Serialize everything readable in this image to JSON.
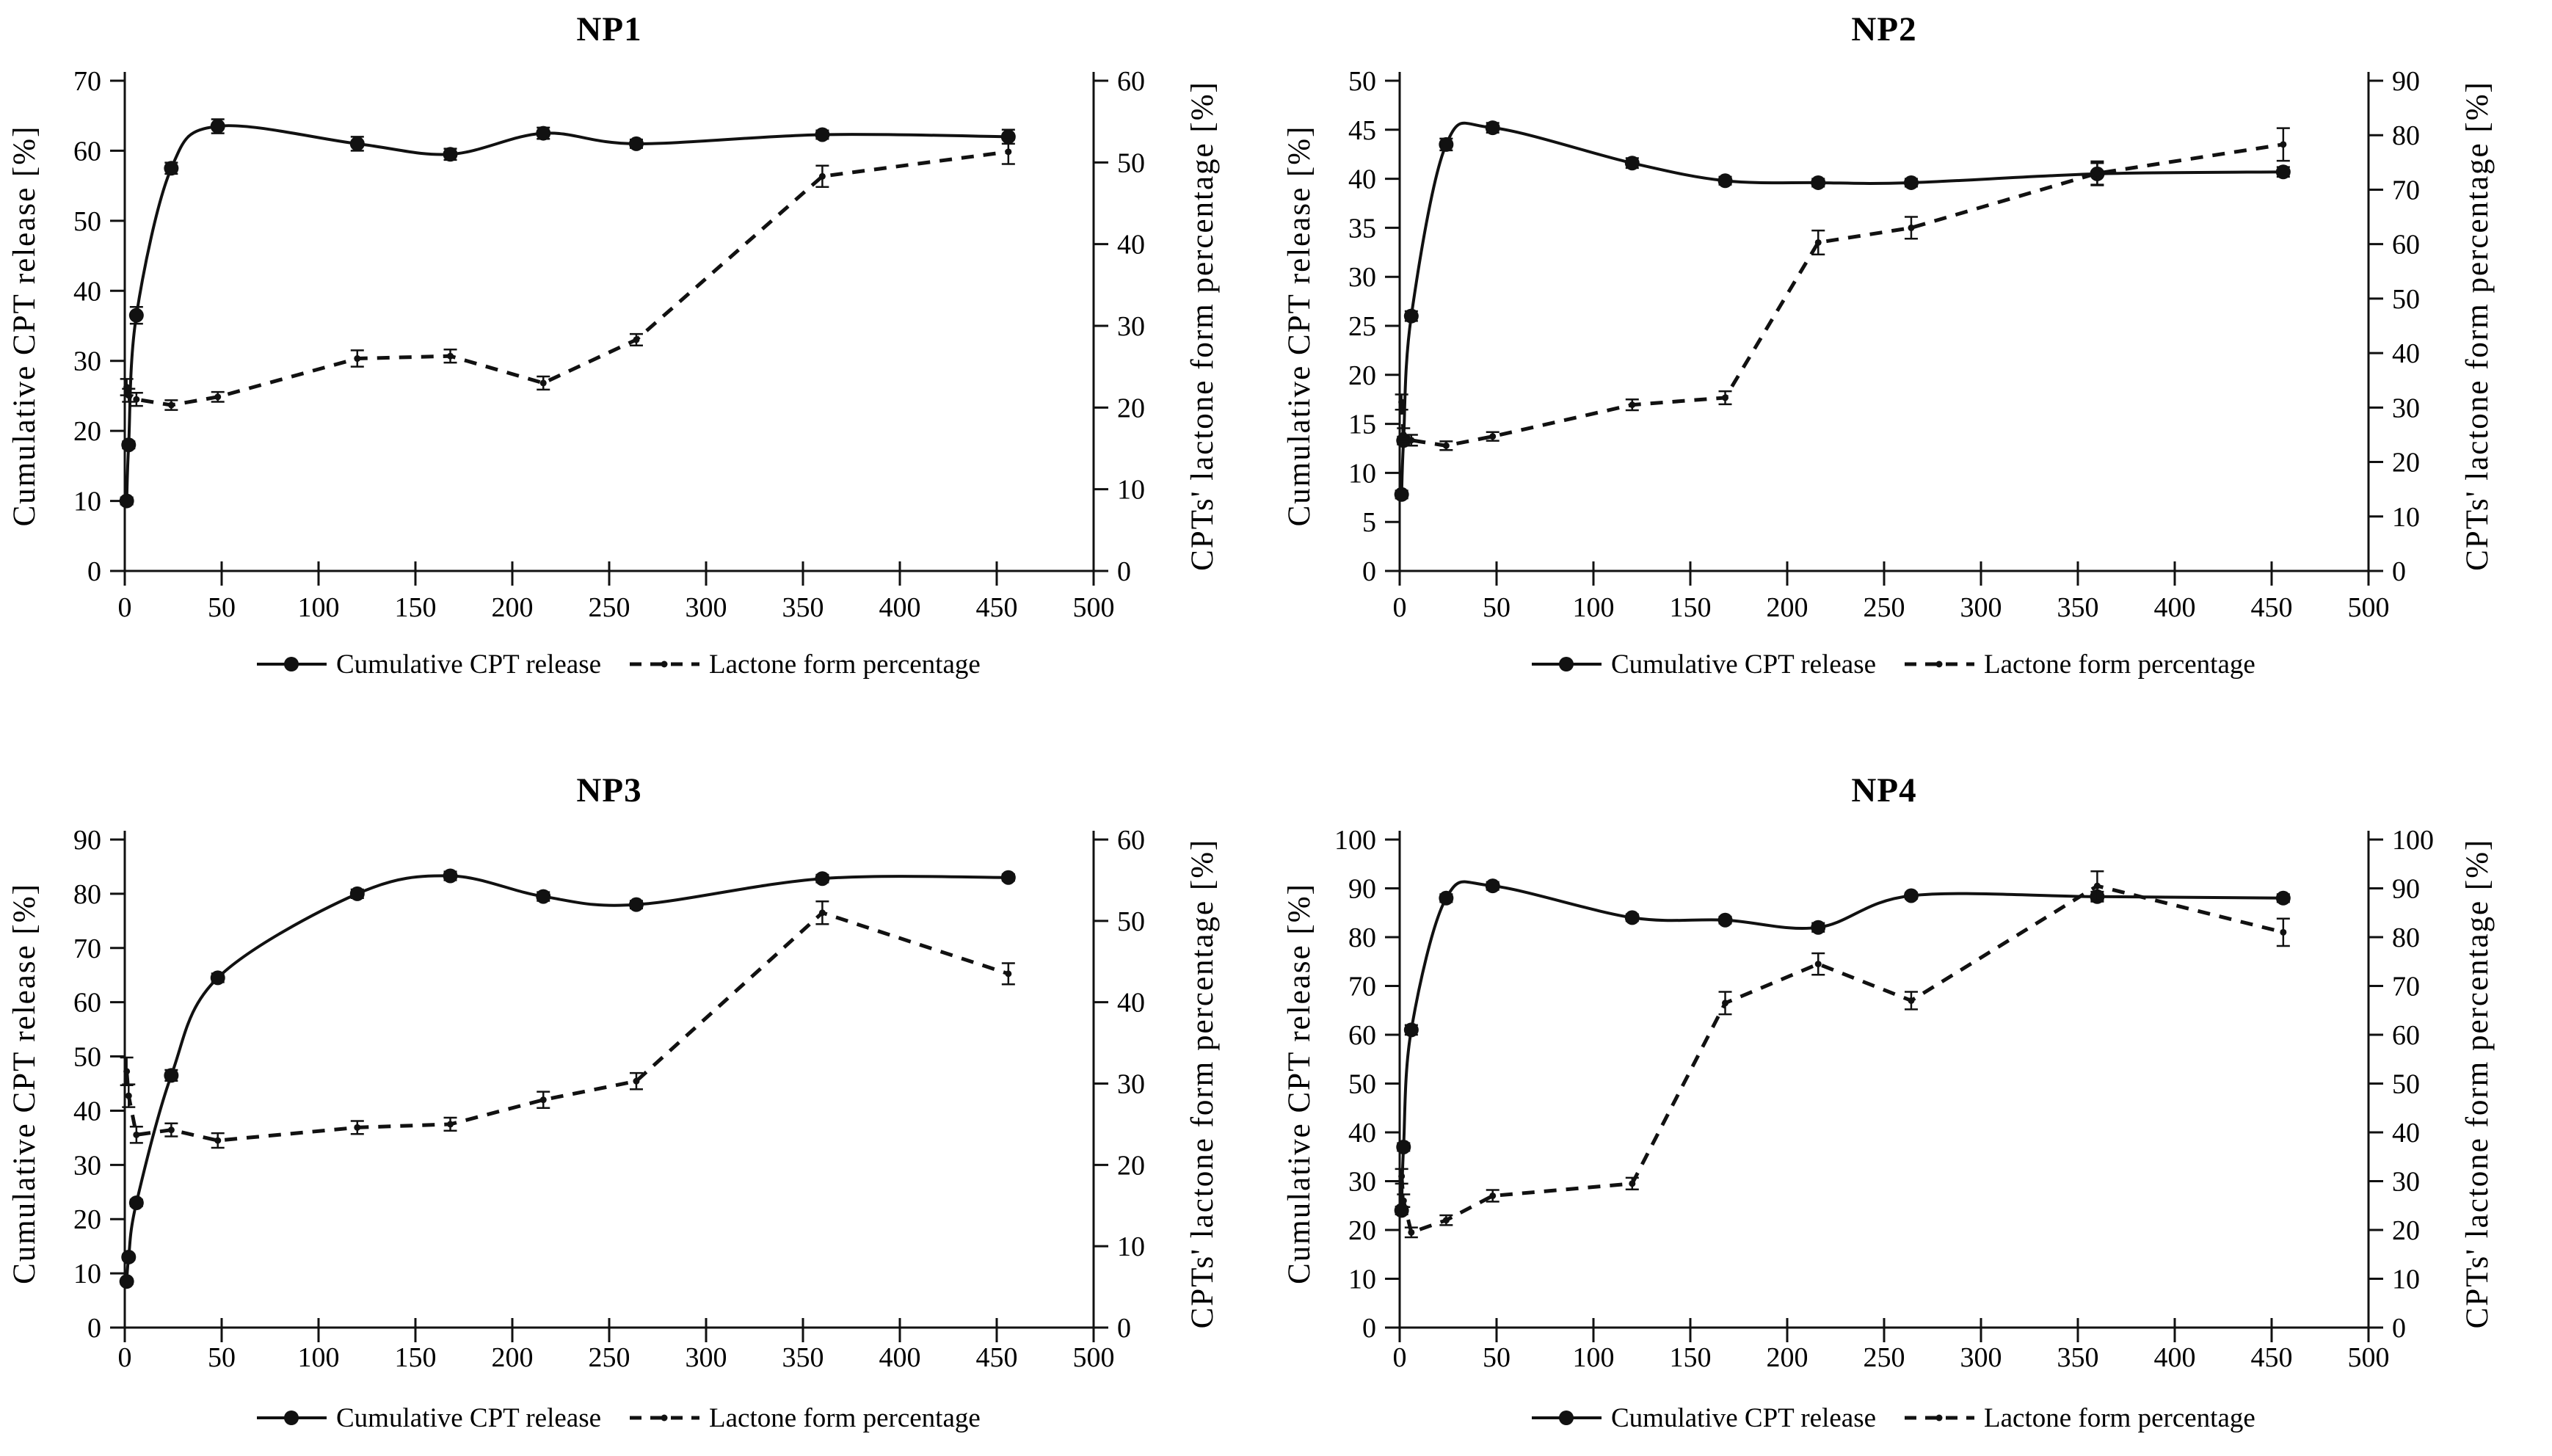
{
  "figure": {
    "background": "#ffffff",
    "line_color": "#111111",
    "description_titles": [
      "NP1",
      "NP2",
      "NP3",
      "NP4"
    ]
  },
  "legend": {
    "series1_label": "Cumulative CPT release",
    "series2_label": "Lactone form percentage"
  },
  "chart_data": [
    {
      "id": "np1",
      "type": "line",
      "title": "NP1",
      "x_axis": {
        "min": 0,
        "max": 500,
        "step": 50
      },
      "left_axis": {
        "label": "Cumulative  CPT release [%]",
        "min": 0,
        "max": 70,
        "step": 10
      },
      "right_axis": {
        "label": "CPTs' lactone form percentage [%]",
        "min": 0,
        "max": 60,
        "step": 10
      },
      "grid": false,
      "legend_position": "bottom",
      "series": [
        {
          "name": "Cumulative CPT release",
          "axis": "left",
          "line": "solid",
          "marker": "circle",
          "x": [
            1,
            2,
            6,
            24,
            48,
            120,
            168,
            216,
            264,
            360,
            456
          ],
          "y": [
            10,
            18,
            36.5,
            57.5,
            63.5,
            61,
            59.5,
            62.5,
            61,
            62.3,
            62
          ],
          "err": [
            0.5,
            0.5,
            1.2,
            0.8,
            1,
            1,
            0.8,
            0.8,
            0.6,
            0.6,
            1
          ]
        },
        {
          "name": "Lactone form percentage",
          "axis": "right",
          "line": "dashed",
          "marker": "dot",
          "x": [
            1,
            2,
            6,
            24,
            48,
            120,
            168,
            216,
            264,
            360,
            456
          ],
          "y": [
            22.5,
            21.5,
            21,
            20.3,
            21.3,
            26,
            26.3,
            23,
            28.3,
            48.3,
            51.3
          ],
          "err": [
            1,
            0.8,
            0.8,
            0.6,
            0.6,
            1,
            0.8,
            0.8,
            0.7,
            1.3,
            1.5
          ]
        }
      ]
    },
    {
      "id": "np2",
      "type": "line",
      "title": "NP2",
      "x_axis": {
        "min": 0,
        "max": 500,
        "step": 50
      },
      "left_axis": {
        "label": "Cumulative  CPT release [%]",
        "min": 0,
        "max": 50,
        "step": 5
      },
      "right_axis": {
        "label": "CPTs' lactone form percentage [%]",
        "min": 0,
        "max": 90,
        "step": 10
      },
      "grid": false,
      "legend_position": "bottom",
      "series": [
        {
          "name": "Cumulative CPT release",
          "axis": "left",
          "line": "solid",
          "marker": "circle",
          "x": [
            1,
            2,
            6,
            24,
            48,
            120,
            168,
            216,
            264,
            360,
            456
          ],
          "y": [
            7.8,
            13.3,
            26,
            43.5,
            45.2,
            41.6,
            39.8,
            39.6,
            39.6,
            40.5,
            40.7
          ],
          "err": [
            0.4,
            0.4,
            0.5,
            0.6,
            0.5,
            0.5,
            0.4,
            0.4,
            0.4,
            1.1,
            0.5
          ]
        },
        {
          "name": "Lactone form percentage",
          "axis": "right",
          "line": "dashed",
          "marker": "dot",
          "x": [
            1,
            2,
            6,
            24,
            48,
            120,
            168,
            216,
            264,
            360,
            456
          ],
          "y": [
            31,
            25,
            24,
            23,
            24.7,
            30.5,
            31.8,
            60.3,
            63,
            73,
            78.3
          ],
          "err": [
            1.4,
            1.2,
            1,
            0.8,
            0.8,
            1,
            1.2,
            2.2,
            2,
            2.2,
            3
          ]
        }
      ]
    },
    {
      "id": "np3",
      "type": "line",
      "title": "NP3",
      "x_axis": {
        "min": 0,
        "max": 500,
        "step": 50
      },
      "left_axis": {
        "label": "Cumulative  CPT release [%]",
        "min": 0,
        "max": 90,
        "step": 10
      },
      "right_axis": {
        "label": "CPTs' lactone form percentage [%]",
        "min": 0,
        "max": 60,
        "step": 10
      },
      "grid": false,
      "legend_position": "bottom",
      "series": [
        {
          "name": "Cumulative CPT release",
          "axis": "left",
          "line": "solid",
          "marker": "circle",
          "x": [
            1,
            2,
            6,
            24,
            48,
            120,
            168,
            216,
            264,
            360,
            456
          ],
          "y": [
            8.5,
            13,
            23,
            46.5,
            64.5,
            80,
            83.3,
            79.5,
            78,
            82.8,
            83
          ],
          "err": [
            0.5,
            0.5,
            0.6,
            1,
            0.8,
            0.8,
            0.8,
            0.8,
            0.7,
            0.7,
            0.6
          ]
        },
        {
          "name": "Lactone form percentage",
          "axis": "right",
          "line": "dashed",
          "marker": "dot",
          "x": [
            1,
            2,
            6,
            24,
            48,
            120,
            168,
            216,
            264,
            360,
            456
          ],
          "y": [
            31.5,
            28.5,
            23.7,
            24.3,
            23,
            24.6,
            25,
            28,
            30.3,
            51,
            43.5
          ],
          "err": [
            1.7,
            1.4,
            1,
            0.8,
            0.9,
            0.8,
            0.8,
            1,
            1,
            1.4,
            1.3
          ]
        }
      ]
    },
    {
      "id": "np4",
      "type": "line",
      "title": "NP4",
      "x_axis": {
        "min": 0,
        "max": 500,
        "step": 50
      },
      "left_axis": {
        "label": "Cumulative  CPT release [%]",
        "min": 0,
        "max": 100,
        "step": 10
      },
      "right_axis": {
        "label": "CPTs' lactone form percentage [%]",
        "min": 0,
        "max": 100,
        "step": 10
      },
      "grid": false,
      "legend_position": "bottom",
      "series": [
        {
          "name": "Cumulative CPT release",
          "axis": "left",
          "line": "solid",
          "marker": "circle",
          "x": [
            1,
            2,
            6,
            24,
            48,
            120,
            168,
            216,
            264,
            360,
            456
          ],
          "y": [
            24,
            37,
            61,
            88,
            90.5,
            84,
            83.5,
            82,
            88.5,
            88.3,
            88
          ],
          "err": [
            0.8,
            0.8,
            1,
            0.8,
            0.8,
            0.7,
            0.7,
            0.9,
            0.6,
            1,
            0.8
          ]
        },
        {
          "name": "Lactone form percentage",
          "axis": "right",
          "line": "dashed",
          "marker": "dot",
          "x": [
            1,
            2,
            6,
            24,
            48,
            120,
            168,
            216,
            264,
            360,
            456
          ],
          "y": [
            31,
            26,
            19.5,
            22,
            27,
            29.5,
            66.5,
            74.5,
            67,
            90.5,
            81
          ],
          "err": [
            1.5,
            1.3,
            1,
            1,
            1.2,
            1.2,
            2.3,
            2.2,
            1.8,
            3,
            2.8
          ]
        }
      ]
    }
  ]
}
